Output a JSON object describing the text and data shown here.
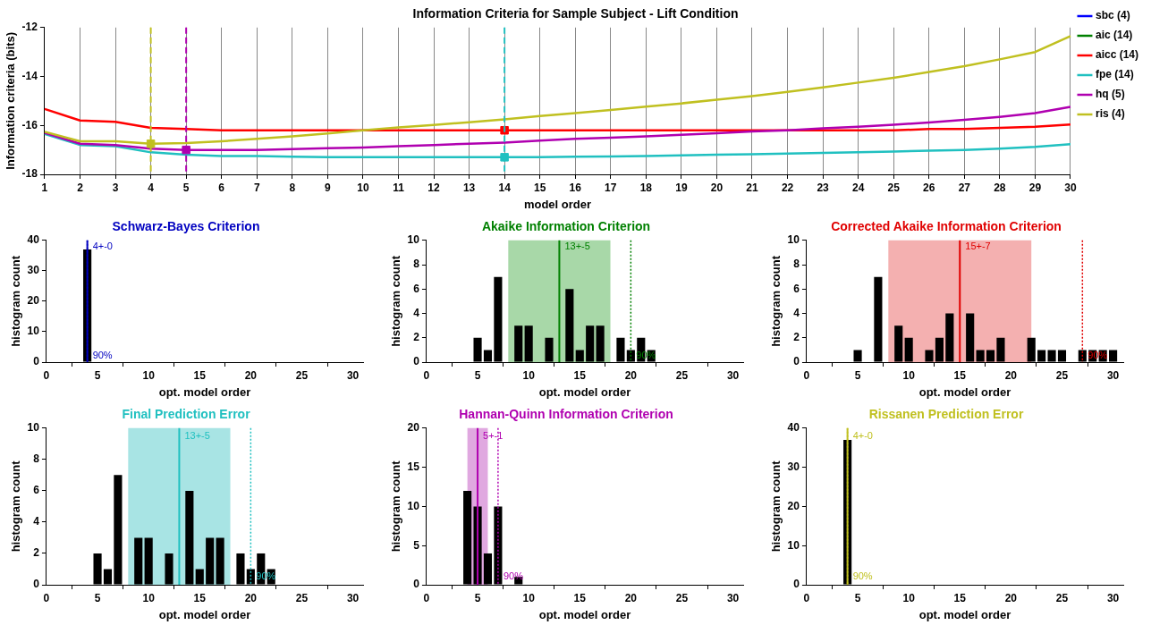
{
  "chart_data": [
    {
      "type": "line",
      "title": "Information Criteria for Sample Subject - Lift Condition",
      "xlabel": "model order",
      "ylabel": "Information criteria (bits)",
      "x": [
        1,
        2,
        3,
        4,
        5,
        6,
        7,
        8,
        9,
        10,
        11,
        12,
        13,
        14,
        15,
        16,
        17,
        18,
        19,
        20,
        21,
        22,
        23,
        24,
        25,
        26,
        27,
        28,
        29,
        30
      ],
      "xlim": [
        1,
        30
      ],
      "xticks": [
        1,
        2,
        3,
        4,
        5,
        6,
        7,
        8,
        9,
        10,
        11,
        12,
        13,
        14,
        15,
        16,
        17,
        18,
        19,
        20,
        21,
        22,
        23,
        24,
        25,
        26,
        27,
        28,
        29,
        30
      ],
      "ylim": [
        -18,
        -12
      ],
      "yticks": [
        -18,
        -16,
        -14,
        -12
      ],
      "grid": "x",
      "legend": "top right",
      "series": [
        {
          "name": "sbc (4)",
          "color": "#0000ff",
          "values": [
            null,
            null,
            null,
            null,
            null,
            null,
            null,
            null,
            null,
            null,
            null,
            null,
            null,
            null,
            null,
            null,
            null,
            null,
            null,
            null,
            null,
            null,
            null,
            null,
            null,
            null,
            null,
            null,
            null,
            null
          ]
        },
        {
          "name": "aic (14)",
          "color": "#008000",
          "values": [
            null,
            null,
            null,
            null,
            null,
            null,
            null,
            null,
            null,
            null,
            null,
            null,
            null,
            null,
            null,
            null,
            null,
            null,
            null,
            null,
            null,
            null,
            null,
            null,
            null,
            null,
            null,
            null,
            null,
            null
          ]
        },
        {
          "name": "aicc (14)",
          "color": "#ff0000",
          "values": [
            -15.33,
            -15.8,
            -15.85,
            -16.1,
            -16.15,
            -16.2,
            -16.2,
            -16.2,
            -16.2,
            -16.2,
            -16.2,
            -16.2,
            -16.2,
            -16.2,
            -16.2,
            -16.2,
            -16.2,
            -16.2,
            -16.2,
            -16.2,
            -16.2,
            -16.2,
            -16.2,
            -16.2,
            -16.2,
            -16.15,
            -16.15,
            -16.1,
            -16.05,
            -15.96
          ]
        },
        {
          "name": "fpe (14)",
          "color": "#20c0c0",
          "values": [
            -16.35,
            -16.8,
            -16.85,
            -17.1,
            -17.2,
            -17.25,
            -17.25,
            -17.28,
            -17.3,
            -17.3,
            -17.3,
            -17.3,
            -17.3,
            -17.3,
            -17.3,
            -17.28,
            -17.27,
            -17.25,
            -17.22,
            -17.2,
            -17.18,
            -17.15,
            -17.12,
            -17.1,
            -17.07,
            -17.03,
            -17.0,
            -16.95,
            -16.88,
            -16.77
          ]
        },
        {
          "name": "hq (5)",
          "color": "#b000b0",
          "values": [
            -16.3,
            -16.75,
            -16.8,
            -16.95,
            -17.0,
            -17.0,
            -17.0,
            -16.97,
            -16.93,
            -16.9,
            -16.85,
            -16.8,
            -16.75,
            -16.7,
            -16.62,
            -16.55,
            -16.5,
            -16.45,
            -16.38,
            -16.32,
            -16.25,
            -16.2,
            -16.12,
            -16.05,
            -15.97,
            -15.88,
            -15.77,
            -15.65,
            -15.5,
            -15.24
          ]
        },
        {
          "name": "ris (4)",
          "color": "#c0c020",
          "values": [
            -16.26,
            -16.65,
            -16.65,
            -16.75,
            -16.72,
            -16.65,
            -16.55,
            -16.45,
            -16.33,
            -16.2,
            -16.08,
            -15.98,
            -15.87,
            -15.75,
            -15.62,
            -15.5,
            -15.37,
            -15.23,
            -15.1,
            -14.95,
            -14.8,
            -14.63,
            -14.45,
            -14.25,
            -14.05,
            -13.82,
            -13.58,
            -13.3,
            -13.0,
            -12.35
          ]
        },
        {
          "type": "scatter",
          "marker": "square",
          "x": [
            4,
            5,
            14,
            14
          ],
          "values": [
            -16.75,
            -17.0,
            -16.2,
            -17.3
          ],
          "colors": [
            "#c0c020",
            "#b000b0",
            "#ff0000",
            "#20c0c0"
          ]
        }
      ],
      "ref_lines": [
        {
          "axis": "x",
          "value": 4,
          "color": "#c0c020",
          "line_style": "dashed"
        },
        {
          "axis": "x",
          "value": 5,
          "color": "#b000b0",
          "line_style": "dashed"
        },
        {
          "axis": "x",
          "value": 14,
          "color": "#20c0c0",
          "line_style": "dashed"
        }
      ]
    },
    {
      "type": "histogram",
      "title": "Schwarz-Bayes Criterion",
      "xlabel": "opt. model order",
      "ylabel": "histogram count",
      "color": "#000000",
      "bins": [
        0.5,
        1.5,
        2.5,
        3.5,
        4.5,
        5.5,
        6.5,
        7.5,
        8.5,
        9.5,
        10.5,
        11.5,
        12.5,
        13.5,
        14.5,
        15.5,
        16.5,
        17.5,
        18.5,
        19.5,
        20.5,
        21.5,
        22.5,
        23.5,
        24.5,
        25.5,
        26.5,
        27.5,
        28.5,
        29.5,
        30.5
      ],
      "values": [
        0,
        0,
        0,
        37,
        0,
        0,
        0,
        0,
        0,
        0,
        0,
        0,
        0,
        0,
        0,
        0,
        0,
        0,
        0,
        0,
        0,
        0,
        0,
        0,
        0,
        0,
        0,
        0,
        0,
        0
      ],
      "xlim": [
        0,
        31
      ],
      "xticks": [
        0,
        5,
        10,
        15,
        20,
        25,
        30
      ],
      "ylim": [
        0,
        40
      ],
      "yticks": [
        0,
        10,
        20,
        30,
        40
      ],
      "annotations": [
        {
          "text": "4+-0",
          "x": 4,
          "y": 38
        },
        {
          "text": "90%",
          "x": 4,
          "y": 2
        }
      ],
      "ref_lines": [
        {
          "axis": "x",
          "value": 4,
          "color": "#0000c0",
          "line_style": "solid"
        },
        {
          "axis": "x",
          "value": 4,
          "color": "#0000c0",
          "line_style": "dotted"
        }
      ]
    },
    {
      "type": "histogram",
      "title": "Akaike Information Criterion",
      "xlabel": "opt. model order",
      "ylabel": "histogram count",
      "color": "#000000",
      "bins": [
        0.5,
        1.5,
        2.5,
        3.5,
        4.5,
        5.5,
        6.5,
        7.5,
        8.5,
        9.5,
        10.5,
        11.5,
        12.5,
        13.5,
        14.5,
        15.5,
        16.5,
        17.5,
        18.5,
        19.5,
        20.5,
        21.5,
        22.5,
        23.5,
        24.5,
        25.5,
        26.5,
        27.5,
        28.5,
        29.5,
        30.5
      ],
      "values": [
        0,
        0,
        0,
        0,
        2,
        1,
        7,
        0,
        3,
        3,
        0,
        2,
        0,
        6,
        1,
        3,
        3,
        0,
        2,
        1,
        2,
        1,
        0,
        0,
        0,
        0,
        0,
        0,
        0,
        0
      ],
      "xlim": [
        0,
        31
      ],
      "xticks": [
        0,
        5,
        10,
        15,
        20,
        25,
        30
      ],
      "ylim": [
        0,
        10
      ],
      "yticks": [
        0,
        2,
        4,
        6,
        8,
        10
      ],
      "bands": [
        {
          "axis": "x",
          "from": 8,
          "to": 18,
          "color": "#a8d8a8"
        }
      ],
      "annotations": [
        {
          "text": "13+-5",
          "x": 13,
          "y": 9.5
        },
        {
          "text": "90%",
          "x": 20,
          "y": 0.5
        }
      ],
      "ref_lines": [
        {
          "axis": "x",
          "value": 13,
          "color": "#008000",
          "line_style": "solid"
        },
        {
          "axis": "x",
          "value": 20,
          "color": "#008000",
          "line_style": "dotted"
        }
      ]
    },
    {
      "type": "histogram",
      "title": "Corrected Akaike Information Criterion",
      "xlabel": "opt. model order",
      "ylabel": "histogram count",
      "color": "#000000",
      "bins": [
        0.5,
        1.5,
        2.5,
        3.5,
        4.5,
        5.5,
        6.5,
        7.5,
        8.5,
        9.5,
        10.5,
        11.5,
        12.5,
        13.5,
        14.5,
        15.5,
        16.5,
        17.5,
        18.5,
        19.5,
        20.5,
        21.5,
        22.5,
        23.5,
        24.5,
        25.5,
        26.5,
        27.5,
        28.5,
        29.5,
        30.5
      ],
      "values": [
        0,
        0,
        0,
        0,
        1,
        0,
        7,
        0,
        3,
        2,
        0,
        1,
        2,
        4,
        0,
        4,
        1,
        1,
        2,
        0,
        0,
        2,
        1,
        1,
        1,
        0,
        1,
        1,
        1,
        1
      ],
      "xlim": [
        0,
        31
      ],
      "xticks": [
        0,
        5,
        10,
        15,
        20,
        25,
        30
      ],
      "ylim": [
        0,
        10
      ],
      "yticks": [
        0,
        2,
        4,
        6,
        8,
        10
      ],
      "bands": [
        {
          "axis": "x",
          "from": 8,
          "to": 22,
          "color": "#f4b0b0"
        }
      ],
      "annotations": [
        {
          "text": "15+-7",
          "x": 15,
          "y": 9.5
        },
        {
          "text": "90%",
          "x": 27,
          "y": 0.5
        }
      ],
      "ref_lines": [
        {
          "axis": "x",
          "value": 15,
          "color": "#e00000",
          "line_style": "solid"
        },
        {
          "axis": "x",
          "value": 27,
          "color": "#e00000",
          "line_style": "dotted"
        }
      ]
    },
    {
      "type": "histogram",
      "title": "Final Prediction Error",
      "xlabel": "opt. model order",
      "ylabel": "histogram count",
      "color": "#000000",
      "bins": [
        0.5,
        1.5,
        2.5,
        3.5,
        4.5,
        5.5,
        6.5,
        7.5,
        8.5,
        9.5,
        10.5,
        11.5,
        12.5,
        13.5,
        14.5,
        15.5,
        16.5,
        17.5,
        18.5,
        19.5,
        20.5,
        21.5,
        22.5,
        23.5,
        24.5,
        25.5,
        26.5,
        27.5,
        28.5,
        29.5,
        30.5
      ],
      "values": [
        0,
        0,
        0,
        0,
        2,
        1,
        7,
        0,
        3,
        3,
        0,
        2,
        0,
        6,
        1,
        3,
        3,
        0,
        2,
        1,
        2,
        1,
        0,
        0,
        0,
        0,
        0,
        0,
        0,
        0
      ],
      "xlim": [
        0,
        31
      ],
      "xticks": [
        0,
        5,
        10,
        15,
        20,
        25,
        30
      ],
      "ylim": [
        0,
        10
      ],
      "yticks": [
        0,
        2,
        4,
        6,
        8,
        10
      ],
      "bands": [
        {
          "axis": "x",
          "from": 8,
          "to": 18,
          "color": "#a8e4e4"
        }
      ],
      "annotations": [
        {
          "text": "13+-5",
          "x": 13,
          "y": 9.5
        },
        {
          "text": "90%",
          "x": 20,
          "y": 0.5
        }
      ],
      "ref_lines": [
        {
          "axis": "x",
          "value": 13,
          "color": "#20c0c0",
          "line_style": "solid"
        },
        {
          "axis": "x",
          "value": 20,
          "color": "#20c0c0",
          "line_style": "dotted"
        }
      ]
    },
    {
      "type": "histogram",
      "title": "Hannan-Quinn Information Criterion",
      "xlabel": "opt. model order",
      "ylabel": "histogram count",
      "color": "#000000",
      "bins": [
        0.5,
        1.5,
        2.5,
        3.5,
        4.5,
        5.5,
        6.5,
        7.5,
        8.5,
        9.5,
        10.5,
        11.5,
        12.5,
        13.5,
        14.5,
        15.5,
        16.5,
        17.5,
        18.5,
        19.5,
        20.5,
        21.5,
        22.5,
        23.5,
        24.5,
        25.5,
        26.5,
        27.5,
        28.5,
        29.5,
        30.5
      ],
      "values": [
        0,
        0,
        0,
        12,
        10,
        4,
        10,
        0,
        1,
        0,
        0,
        0,
        0,
        0,
        0,
        0,
        0,
        0,
        0,
        0,
        0,
        0,
        0,
        0,
        0,
        0,
        0,
        0,
        0,
        0
      ],
      "xlim": [
        0,
        31
      ],
      "xticks": [
        0,
        5,
        10,
        15,
        20,
        25,
        30
      ],
      "ylim": [
        0,
        20
      ],
      "yticks": [
        0,
        5,
        10,
        15,
        20
      ],
      "bands": [
        {
          "axis": "x",
          "from": 4,
          "to": 6,
          "color": "#e0a8e0"
        }
      ],
      "annotations": [
        {
          "text": "5+-1",
          "x": 5,
          "y": 19
        },
        {
          "text": "90%",
          "x": 7,
          "y": 1
        }
      ],
      "ref_lines": [
        {
          "axis": "x",
          "value": 5,
          "color": "#b000b0",
          "line_style": "solid"
        },
        {
          "axis": "x",
          "value": 7,
          "color": "#b000b0",
          "line_style": "dotted"
        }
      ]
    },
    {
      "type": "histogram",
      "title": "Rissanen Prediction Error",
      "xlabel": "opt. model order",
      "ylabel": "histogram count",
      "color": "#000000",
      "bins": [
        0.5,
        1.5,
        2.5,
        3.5,
        4.5,
        5.5,
        6.5,
        7.5,
        8.5,
        9.5,
        10.5,
        11.5,
        12.5,
        13.5,
        14.5,
        15.5,
        16.5,
        17.5,
        18.5,
        19.5,
        20.5,
        21.5,
        22.5,
        23.5,
        24.5,
        25.5,
        26.5,
        27.5,
        28.5,
        29.5,
        30.5
      ],
      "values": [
        0,
        0,
        0,
        37,
        0,
        0,
        0,
        0,
        0,
        0,
        0,
        0,
        0,
        0,
        0,
        0,
        0,
        0,
        0,
        0,
        0,
        0,
        0,
        0,
        0,
        0,
        0,
        0,
        0,
        0
      ],
      "xlim": [
        0,
        31
      ],
      "xticks": [
        0,
        5,
        10,
        15,
        20,
        25,
        30
      ],
      "ylim": [
        0,
        40
      ],
      "yticks": [
        0,
        10,
        20,
        30,
        40
      ],
      "annotations": [
        {
          "text": "4+-0",
          "x": 4,
          "y": 38
        },
        {
          "text": "90%",
          "x": 4,
          "y": 2
        }
      ],
      "ref_lines": [
        {
          "axis": "x",
          "value": 4,
          "color": "#c0c020",
          "line_style": "solid"
        },
        {
          "axis": "x",
          "value": 4,
          "color": "#c0c020",
          "line_style": "dotted"
        }
      ]
    }
  ]
}
